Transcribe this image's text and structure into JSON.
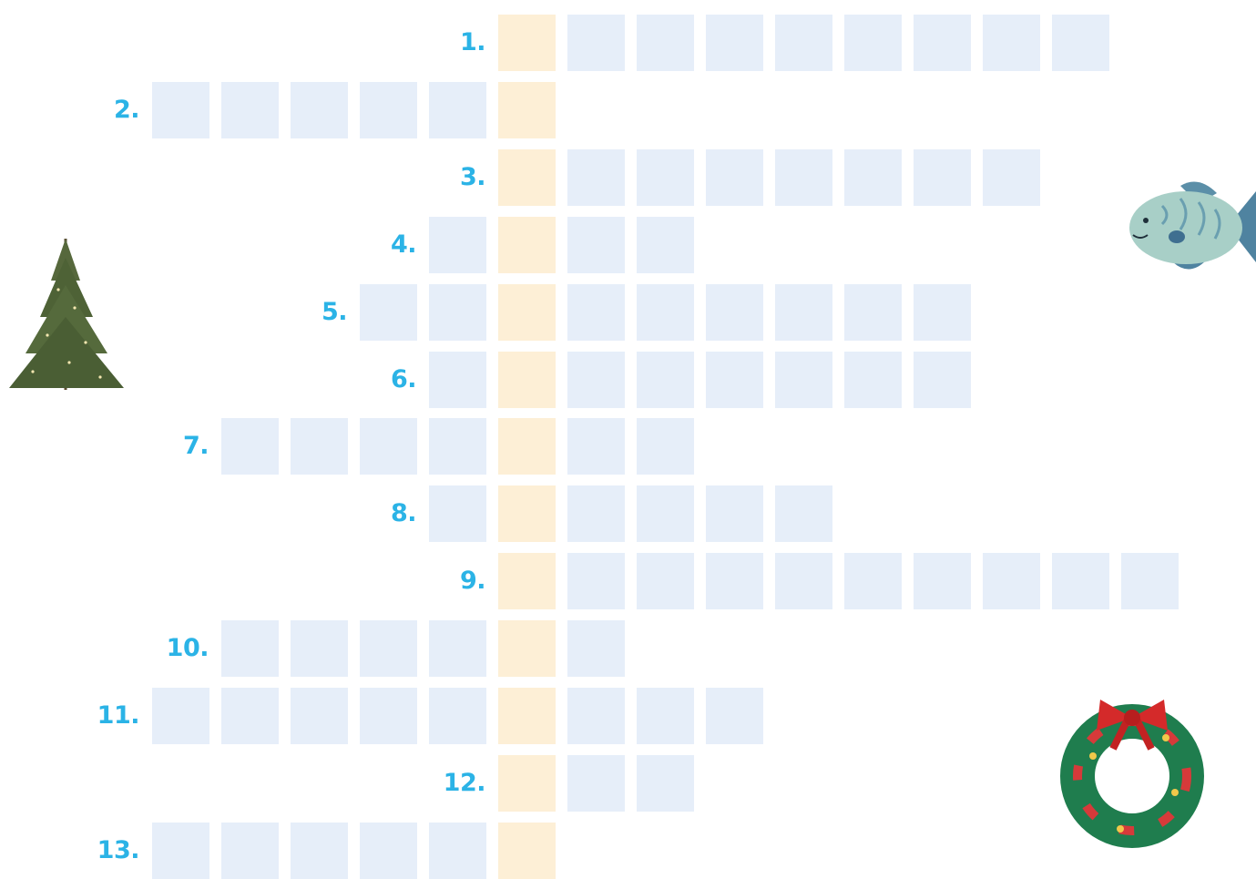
{
  "clues": [
    {
      "number": "1."
    },
    {
      "number": "2."
    },
    {
      "number": "3."
    },
    {
      "number": "4."
    },
    {
      "number": "5."
    },
    {
      "number": "6."
    },
    {
      "number": "7."
    },
    {
      "number": "8."
    },
    {
      "number": "9."
    },
    {
      "number": "10."
    },
    {
      "number": "11."
    },
    {
      "number": "12."
    },
    {
      "number": "13."
    }
  ]
}
